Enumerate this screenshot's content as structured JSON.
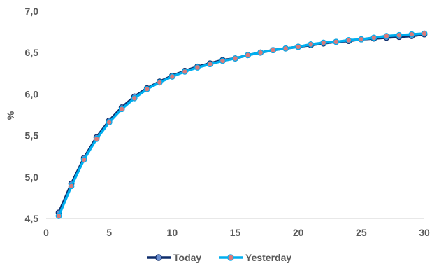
{
  "chart_data": {
    "type": "line",
    "title": "",
    "xlabel": "",
    "ylabel": "%",
    "xlim": [
      0,
      30
    ],
    "ylim": [
      4.5,
      7.0
    ],
    "x_ticks": [
      "0",
      "5",
      "10",
      "15",
      "20",
      "25",
      "30"
    ],
    "y_ticks": [
      "4,5",
      "5,0",
      "5,5",
      "6,0",
      "6,5",
      "7,0"
    ],
    "grid": false,
    "legend_position": "bottom",
    "x": [
      1,
      2,
      3,
      4,
      5,
      6,
      7,
      8,
      9,
      10,
      11,
      12,
      13,
      14,
      15,
      16,
      17,
      18,
      19,
      20,
      21,
      22,
      23,
      24,
      25,
      26,
      27,
      28,
      29,
      30
    ],
    "series": [
      {
        "name": "Today",
        "line_color": "#0e2d6b",
        "marker_color": "#6b8fd1",
        "values": [
          4.57,
          4.92,
          5.23,
          5.48,
          5.68,
          5.84,
          5.97,
          6.07,
          6.15,
          6.22,
          6.28,
          6.33,
          6.37,
          6.41,
          6.43,
          6.47,
          6.5,
          6.53,
          6.55,
          6.57,
          6.59,
          6.61,
          6.63,
          6.64,
          6.66,
          6.67,
          6.68,
          6.69,
          6.7,
          6.72
        ]
      },
      {
        "name": "Yesterday",
        "line_color": "#00aeef",
        "marker_color": "#d97a7a",
        "values": [
          4.53,
          4.89,
          5.21,
          5.46,
          5.66,
          5.82,
          5.95,
          6.06,
          6.14,
          6.21,
          6.27,
          6.32,
          6.36,
          6.4,
          6.43,
          6.47,
          6.5,
          6.53,
          6.55,
          6.57,
          6.6,
          6.62,
          6.63,
          6.65,
          6.66,
          6.68,
          6.7,
          6.71,
          6.72,
          6.73
        ]
      }
    ]
  }
}
